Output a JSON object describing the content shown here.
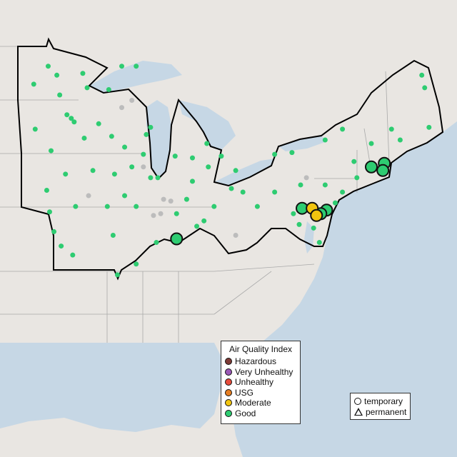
{
  "map": {
    "colors": {
      "land": "#e9e6e2",
      "water": "#c6d7e5",
      "region_border": "#000000",
      "state_border": "#a9a9a9",
      "inactive": "#bcbcbc"
    },
    "sensors": [
      {
        "lon": -94.4,
        "lat": 47.9,
        "aqi": "Good"
      },
      {
        "lon": -93.8,
        "lat": 47.4,
        "aqi": "Good"
      },
      {
        "lon": -92.0,
        "lat": 47.5,
        "aqi": "Good"
      },
      {
        "lon": -95.4,
        "lat": 46.9,
        "aqi": "Good"
      },
      {
        "lon": -91.7,
        "lat": 46.7,
        "aqi": "Good"
      },
      {
        "lon": -90.2,
        "lat": 46.6,
        "aqi": "Good"
      },
      {
        "lon": -88.3,
        "lat": 47.9,
        "aqi": "Good"
      },
      {
        "lon": -89.3,
        "lat": 47.9,
        "aqi": "Good"
      },
      {
        "lon": -93.6,
        "lat": 46.3,
        "aqi": "Good"
      },
      {
        "lon": -93.1,
        "lat": 45.2,
        "aqi": "Good"
      },
      {
        "lon": -92.8,
        "lat": 45.0,
        "aqi": "Good"
      },
      {
        "lon": -92.6,
        "lat": 44.8,
        "aqi": "Good"
      },
      {
        "lon": -95.3,
        "lat": 44.4,
        "aqi": "Good"
      },
      {
        "lon": -91.9,
        "lat": 43.9,
        "aqi": "Good"
      },
      {
        "lon": -90.9,
        "lat": 44.7,
        "aqi": "Good"
      },
      {
        "lon": -90.0,
        "lat": 44.0,
        "aqi": "Good"
      },
      {
        "lon": -89.1,
        "lat": 43.4,
        "aqi": "Good"
      },
      {
        "lon": -87.8,
        "lat": 43.0,
        "aqi": "Good"
      },
      {
        "lon": -87.6,
        "lat": 44.1,
        "aqi": "Good"
      },
      {
        "lon": -87.3,
        "lat": 44.5,
        "aqi": "Good"
      },
      {
        "lon": -94.2,
        "lat": 43.2,
        "aqi": "Good"
      },
      {
        "lon": -93.2,
        "lat": 41.9,
        "aqi": "Good"
      },
      {
        "lon": -94.5,
        "lat": 41.0,
        "aqi": "Good"
      },
      {
        "lon": -91.3,
        "lat": 42.1,
        "aqi": "Good"
      },
      {
        "lon": -89.8,
        "lat": 41.9,
        "aqi": "Good"
      },
      {
        "lon": -89.1,
        "lat": 40.7,
        "aqi": "Good"
      },
      {
        "lon": -88.6,
        "lat": 42.3,
        "aqi": "Good"
      },
      {
        "lon": -87.3,
        "lat": 41.7,
        "aqi": "Good"
      },
      {
        "lon": -86.8,
        "lat": 41.7,
        "aqi": "Good"
      },
      {
        "lon": -85.6,
        "lat": 42.9,
        "aqi": "Good"
      },
      {
        "lon": -84.4,
        "lat": 42.8,
        "aqi": "Good"
      },
      {
        "lon": -83.3,
        "lat": 42.3,
        "aqi": "Good"
      },
      {
        "lon": -82.4,
        "lat": 42.9,
        "aqi": "Good"
      },
      {
        "lon": -83.4,
        "lat": 43.6,
        "aqi": "Good"
      },
      {
        "lon": -84.4,
        "lat": 41.5,
        "aqi": "Good"
      },
      {
        "lon": -84.8,
        "lat": 40.5,
        "aqi": "Good"
      },
      {
        "lon": -85.5,
        "lat": 39.7,
        "aqi": "Good"
      },
      {
        "lon": -83.6,
        "lat": 39.3,
        "aqi": "Good"
      },
      {
        "lon": -82.9,
        "lat": 40.1,
        "aqi": "Good"
      },
      {
        "lon": -80.9,
        "lat": 40.9,
        "aqi": "Good"
      },
      {
        "lon": -79.9,
        "lat": 40.1,
        "aqi": "Good"
      },
      {
        "lon": -78.7,
        "lat": 40.9,
        "aqi": "Good"
      },
      {
        "lon": -76.9,
        "lat": 41.3,
        "aqi": "Good"
      },
      {
        "lon": -75.2,
        "lat": 41.3,
        "aqi": "Good"
      },
      {
        "lon": -74.0,
        "lat": 40.9,
        "aqi": "Good"
      },
      {
        "lon": -73.0,
        "lat": 41.7,
        "aqi": "Good"
      },
      {
        "lon": -73.2,
        "lat": 42.6,
        "aqi": "Good"
      },
      {
        "lon": -72.0,
        "lat": 43.6,
        "aqi": "Good"
      },
      {
        "lon": -70.6,
        "lat": 44.4,
        "aqi": "Good"
      },
      {
        "lon": -70.0,
        "lat": 43.8,
        "aqi": "Good"
      },
      {
        "lon": -68.5,
        "lat": 47.4,
        "aqi": "Good"
      },
      {
        "lon": -68.3,
        "lat": 46.7,
        "aqi": "Good"
      },
      {
        "lon": -68.0,
        "lat": 44.5,
        "aqi": "Good"
      },
      {
        "lon": -74.0,
        "lat": 44.4,
        "aqi": "Good"
      },
      {
        "lon": -75.2,
        "lat": 43.8,
        "aqi": "Good"
      },
      {
        "lon": -77.5,
        "lat": 43.1,
        "aqi": "Good"
      },
      {
        "lon": -78.7,
        "lat": 43.0,
        "aqi": "Good"
      },
      {
        "lon": -81.4,
        "lat": 42.1,
        "aqi": "Good"
      },
      {
        "lon": -81.7,
        "lat": 41.1,
        "aqi": "Good"
      },
      {
        "lon": -84.1,
        "lat": 39.0,
        "aqi": "Good"
      },
      {
        "lon": -86.9,
        "lat": 38.1,
        "aqi": "Good"
      },
      {
        "lon": -88.3,
        "lat": 36.9,
        "aqi": "Good"
      },
      {
        "lon": -89.6,
        "lat": 36.3,
        "aqi": "Good"
      },
      {
        "lon": -89.9,
        "lat": 38.5,
        "aqi": "Good"
      },
      {
        "lon": -93.5,
        "lat": 37.9,
        "aqi": "Good"
      },
      {
        "lon": -92.7,
        "lat": 37.4,
        "aqi": "Good"
      },
      {
        "lon": -94.0,
        "lat": 38.7,
        "aqi": "Good"
      },
      {
        "lon": -94.3,
        "lat": 39.8,
        "aqi": "Good"
      },
      {
        "lon": -92.5,
        "lat": 40.1,
        "aqi": "Good"
      },
      {
        "lon": -90.3,
        "lat": 40.1,
        "aqi": "Good"
      },
      {
        "lon": -88.3,
        "lat": 40.1,
        "aqi": "Good"
      },
      {
        "lon": -77.4,
        "lat": 39.7,
        "aqi": "Good"
      },
      {
        "lon": -77.0,
        "lat": 39.1,
        "aqi": "Good"
      },
      {
        "lon": -76.0,
        "lat": 38.9,
        "aqi": "Good"
      },
      {
        "lon": -75.6,
        "lat": 38.1,
        "aqi": "Good"
      },
      {
        "lon": -75.0,
        "lat": 39.9,
        "aqi": "Good"
      },
      {
        "lon": -74.5,
        "lat": 40.3,
        "aqi": "Good"
      },
      {
        "lon": -88.6,
        "lat": 46.0,
        "aqi": "none"
      },
      {
        "lon": -89.3,
        "lat": 45.6,
        "aqi": "none"
      },
      {
        "lon": -87.8,
        "lat": 42.3,
        "aqi": "none"
      },
      {
        "lon": -91.6,
        "lat": 40.7,
        "aqi": "none"
      },
      {
        "lon": -87.1,
        "lat": 39.6,
        "aqi": "none"
      },
      {
        "lon": -86.4,
        "lat": 40.5,
        "aqi": "none"
      },
      {
        "lon": -85.9,
        "lat": 40.4,
        "aqi": "none"
      },
      {
        "lon": -86.6,
        "lat": 39.7,
        "aqi": "none"
      },
      {
        "lon": -81.4,
        "lat": 38.5,
        "aqi": "none"
      },
      {
        "lon": -76.5,
        "lat": 41.7,
        "aqi": "none"
      },
      {
        "lon": -85.5,
        "lat": 38.3,
        "aqi": "Good",
        "highlight": true
      },
      {
        "lon": -76.8,
        "lat": 40.0,
        "aqi": "Good",
        "highlight": true
      },
      {
        "lon": -75.1,
        "lat": 39.9,
        "aqi": "Good",
        "highlight": true
      },
      {
        "lon": -75.5,
        "lat": 39.7,
        "aqi": "Good",
        "highlight": true
      },
      {
        "lon": -72.0,
        "lat": 42.3,
        "aqi": "Good",
        "highlight": true
      },
      {
        "lon": -71.1,
        "lat": 42.5,
        "aqi": "Good",
        "highlight": true
      },
      {
        "lon": -71.2,
        "lat": 42.1,
        "aqi": "Good",
        "highlight": true
      },
      {
        "lon": -76.1,
        "lat": 40.0,
        "aqi": "Moderate",
        "highlight": true
      },
      {
        "lon": -75.8,
        "lat": 39.6,
        "aqi": "Moderate",
        "highlight": true
      }
    ]
  },
  "legend": {
    "title": "Air Quality Index",
    "items": [
      {
        "label": "Hazardous",
        "color": "#7e3a36"
      },
      {
        "label": "Very Unhealthy",
        "color": "#9b59b6"
      },
      {
        "label": "Unhealthy",
        "color": "#e74c3c"
      },
      {
        "label": "USG",
        "color": "#e67e22"
      },
      {
        "label": "Moderate",
        "color": "#f1c40f"
      },
      {
        "label": "Good",
        "color": "#2ecc71"
      }
    ]
  },
  "type_legend": {
    "temporary": "temporary",
    "permanent": "permanent"
  }
}
